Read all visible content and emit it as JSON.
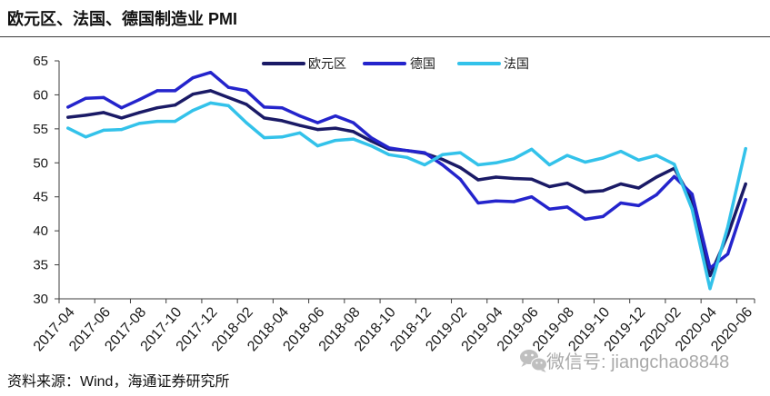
{
  "source": "资料来源：Wind，海通证券研究所",
  "watermark": {
    "icon": "wechat-icon",
    "text": "微信号: jiangchao8848"
  },
  "chart_data": {
    "type": "line",
    "title": "欧元区、法国、德国制造业 PMI",
    "x": [
      "2017-04",
      "2017-05",
      "2017-06",
      "2017-07",
      "2017-08",
      "2017-09",
      "2017-10",
      "2017-11",
      "2017-12",
      "2018-01",
      "2018-02",
      "2018-03",
      "2018-04",
      "2018-05",
      "2018-06",
      "2018-07",
      "2018-08",
      "2018-09",
      "2018-10",
      "2018-11",
      "2018-12",
      "2019-01",
      "2019-02",
      "2019-03",
      "2019-04",
      "2019-05",
      "2019-06",
      "2019-07",
      "2019-08",
      "2019-09",
      "2019-10",
      "2019-11",
      "2019-12",
      "2020-01",
      "2020-02",
      "2020-03",
      "2020-04",
      "2020-05",
      "2020-06"
    ],
    "ylim": [
      30,
      65
    ],
    "yticks": [
      30,
      35,
      40,
      45,
      50,
      55,
      60,
      65
    ],
    "grid": false,
    "legend": "top-center",
    "series": [
      {
        "name": "欧元区",
        "color": "#1a1a66",
        "values": [
          56.7,
          57.0,
          57.4,
          56.6,
          57.4,
          58.1,
          58.5,
          60.1,
          60.6,
          59.6,
          58.6,
          56.6,
          56.2,
          55.5,
          54.9,
          55.1,
          54.6,
          53.2,
          52.0,
          51.8,
          51.4,
          50.5,
          49.3,
          47.5,
          47.9,
          47.7,
          47.6,
          46.5,
          47.0,
          45.7,
          45.9,
          46.9,
          46.3,
          47.9,
          49.2,
          44.5,
          33.4,
          39.4,
          46.9
        ]
      },
      {
        "name": "德国",
        "color": "#2424cc",
        "values": [
          58.2,
          59.5,
          59.6,
          58.1,
          59.3,
          60.6,
          60.6,
          62.5,
          63.3,
          61.1,
          60.6,
          58.2,
          58.1,
          56.9,
          55.9,
          56.9,
          55.9,
          53.7,
          52.2,
          51.8,
          51.5,
          49.7,
          47.6,
          44.1,
          44.4,
          44.3,
          45.0,
          43.2,
          43.5,
          41.7,
          42.1,
          44.1,
          43.7,
          45.3,
          48.0,
          45.4,
          34.5,
          36.6,
          44.6
        ]
      },
      {
        "name": "法国",
        "color": "#33c2ea",
        "values": [
          55.1,
          53.8,
          54.8,
          54.9,
          55.8,
          56.1,
          56.1,
          57.7,
          58.8,
          58.4,
          55.9,
          53.7,
          53.8,
          54.4,
          52.5,
          53.3,
          53.5,
          52.5,
          51.2,
          50.8,
          49.7,
          51.2,
          51.5,
          49.7,
          50.0,
          50.6,
          52.0,
          49.7,
          51.1,
          50.1,
          50.7,
          51.7,
          50.4,
          51.1,
          49.8,
          43.2,
          31.5,
          40.6,
          52.1
        ]
      }
    ]
  }
}
